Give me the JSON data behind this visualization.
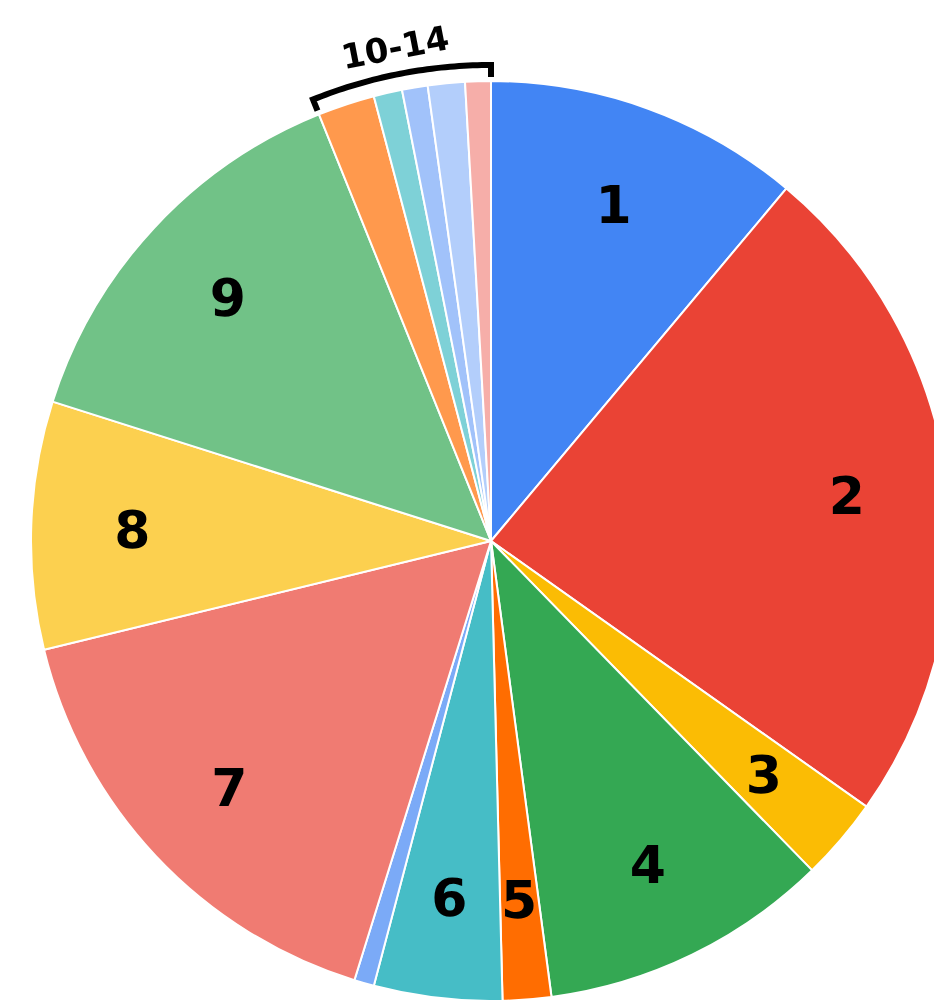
{
  "chart_data": {
    "type": "pie",
    "categories": [
      "1",
      "2",
      "3",
      "4",
      "5",
      "6",
      null,
      "7",
      "8",
      "9",
      null,
      null,
      null,
      null,
      null
    ],
    "values": [
      11.1,
      23.7,
      2.9,
      10.2,
      1.7,
      4.5,
      0.7,
      16.4,
      8.7,
      14.0,
      2.0,
      1.0,
      0.9,
      1.3,
      0.9
    ],
    "colors": [
      "#4285f4",
      "#ea4335",
      "#fbbc04",
      "#34a853",
      "#ff6d01",
      "#46bdc6",
      "#7baaf7",
      "#f07b72",
      "#fcd04f",
      "#71c287",
      "#ff994d",
      "#7ed1d7",
      "#a1c2fa",
      "#b3cefb",
      "#f6aea9"
    ],
    "annotations": [
      "10-14"
    ]
  }
}
